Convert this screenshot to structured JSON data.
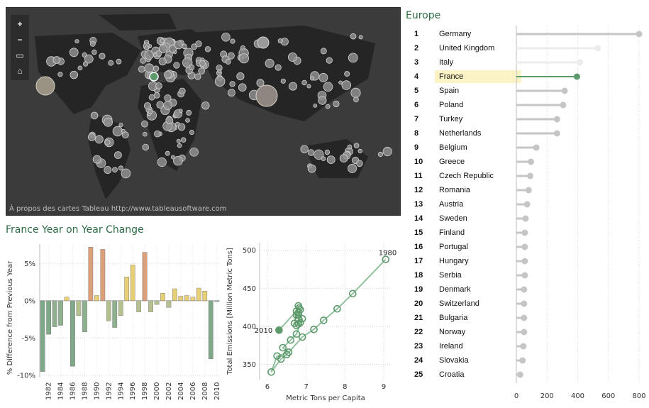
{
  "colors": {
    "map_bg": "#3b3b3b",
    "bubble_fill": "#8e8e8e",
    "bubble_stroke": "#cfcfcf",
    "highlight_green": "#5d9a6b",
    "title_green": "#2f6b46",
    "bar_grey": "#c5c5c5",
    "row_highlight": "#fbf3c5",
    "bar_green": "#7fa888",
    "bar_olive": "#b5c08f",
    "bar_yellow": "#e7cf78",
    "bar_orange": "#dba07a"
  },
  "map": {
    "footer": "À propos des cartes Tableau http://www.tableausoftware.com",
    "tools": [
      {
        "name": "zoom-in-icon",
        "glyph": "+"
      },
      {
        "name": "zoom-out-icon",
        "glyph": "−"
      },
      {
        "name": "select-region-icon",
        "glyph": "▭"
      },
      {
        "name": "home-icon",
        "glyph": "⌂"
      }
    ]
  },
  "europe": {
    "title": "Europe",
    "highlight_country": "France",
    "axis_ticks": [
      0,
      200,
      400,
      600,
      800
    ]
  },
  "yoy": {
    "title": "France Year on Year Change"
  },
  "chart_data": [
    {
      "type": "bar",
      "orientation": "horizontal",
      "title": "Europe",
      "categories": [
        "Germany",
        "United Kingdom",
        "Italy",
        "France",
        "Spain",
        "Poland",
        "Turkey",
        "Netherlands",
        "Belgium",
        "Greece",
        "Czech Republic",
        "Romania",
        "Austria",
        "Sweden",
        "Finland",
        "Portugal",
        "Hungary",
        "Serbia",
        "Denmark",
        "Switzerland",
        "Bulgaria",
        "Norway",
        "Ireland",
        "Slovakia",
        "Croatia"
      ],
      "ranks": [
        1,
        2,
        3,
        4,
        5,
        6,
        7,
        8,
        9,
        10,
        11,
        12,
        13,
        14,
        15,
        16,
        17,
        18,
        19,
        20,
        21,
        22,
        23,
        24,
        25
      ],
      "values": [
        800,
        530,
        415,
        395,
        315,
        305,
        265,
        265,
        130,
        95,
        90,
        80,
        70,
        60,
        55,
        55,
        55,
        55,
        50,
        50,
        50,
        50,
        45,
        40,
        25
      ],
      "xlim": [
        0,
        800
      ],
      "xticks": [
        0,
        200,
        400,
        600,
        800
      ],
      "grid": true,
      "highlight": "France"
    },
    {
      "type": "bar",
      "title": "France Year on Year Change",
      "ylabel": "% Difference from Previous Year",
      "xlabel": "",
      "categories": [
        "1981",
        "1982",
        "1983",
        "1984",
        "1985",
        "1986",
        "1987",
        "1988",
        "1989",
        "1990",
        "1991",
        "1992",
        "1993",
        "1994",
        "1995",
        "1996",
        "1997",
        "1998",
        "1999",
        "2000",
        "2001",
        "2002",
        "2003",
        "2004",
        "2005",
        "2006",
        "2007",
        "2008",
        "2009",
        "2010"
      ],
      "x_tick_labels": [
        "1982",
        "1984",
        "1986",
        "1988",
        "1990",
        "1992",
        "1994",
        "1996",
        "1998",
        "2000",
        "2002",
        "2004",
        "2006",
        "2008",
        "2010"
      ],
      "values": [
        -9.5,
        -4.5,
        -3.5,
        -3.3,
        0.5,
        -8.8,
        -2.0,
        -4.2,
        7.2,
        0.7,
        6.9,
        -2.7,
        -3.6,
        -2.0,
        3.2,
        4.8,
        -1.5,
        6.5,
        -1.5,
        -0.5,
        1.0,
        -0.9,
        1.6,
        0.6,
        0.7,
        0.5,
        1.7,
        1.3,
        -7.8,
        -0.1
      ],
      "colors": [
        "#7fa888",
        "#7fa888",
        "#8fb08e",
        "#8fb08e",
        "#e7cf78",
        "#7fa888",
        "#b5c08f",
        "#8fb08e",
        "#dba07a",
        "#e7cf78",
        "#dba07a",
        "#b5c08f",
        "#8fb08e",
        "#b5c08f",
        "#e7cf78",
        "#e7cf78",
        "#b5c08f",
        "#dba07a",
        "#b5c08f",
        "#b5c08f",
        "#e7cf78",
        "#b5c08f",
        "#e7cf78",
        "#e7cf78",
        "#e7cf78",
        "#e7cf78",
        "#e7cf78",
        "#e7cf78",
        "#7fa888",
        "#7fa888"
      ],
      "yticks": [
        "5%",
        "0%",
        "-5%",
        "-10%"
      ],
      "ytick_values": [
        5,
        0,
        -5,
        -10
      ],
      "ylim": [
        -10.3,
        7.6
      ],
      "grid": true
    },
    {
      "type": "scatter",
      "xlabel": "Metric Tons per Capita",
      "ylabel": "Total Emissions [Million Metric Tons]",
      "xlim": [
        5.8,
        9.2
      ],
      "ylim": [
        330,
        510
      ],
      "xticks": [
        6,
        7,
        8,
        9
      ],
      "yticks": [
        350,
        400,
        450,
        500
      ],
      "grid": true,
      "connected": true,
      "annotations": [
        {
          "x": 9.05,
          "y": 488,
          "text": "1980"
        },
        {
          "x": 6.28,
          "y": 395,
          "text": "2010"
        }
      ],
      "points": [
        {
          "x": 9.05,
          "y": 488
        },
        {
          "x": 8.2,
          "y": 443
        },
        {
          "x": 7.8,
          "y": 423
        },
        {
          "x": 7.45,
          "y": 408
        },
        {
          "x": 7.2,
          "y": 396
        },
        {
          "x": 6.9,
          "y": 386
        },
        {
          "x": 6.5,
          "y": 363
        },
        {
          "x": 6.35,
          "y": 357
        },
        {
          "x": 6.1,
          "y": 340
        },
        {
          "x": 6.25,
          "y": 361
        },
        {
          "x": 6.55,
          "y": 366
        },
        {
          "x": 6.4,
          "y": 372
        },
        {
          "x": 6.6,
          "y": 382
        },
        {
          "x": 6.75,
          "y": 390
        },
        {
          "x": 6.9,
          "y": 410
        },
        {
          "x": 6.8,
          "y": 415
        },
        {
          "x": 6.75,
          "y": 420
        },
        {
          "x": 6.8,
          "y": 427
        },
        {
          "x": 6.7,
          "y": 404
        },
        {
          "x": 6.75,
          "y": 401
        },
        {
          "x": 6.8,
          "y": 403
        },
        {
          "x": 6.85,
          "y": 405
        },
        {
          "x": 6.8,
          "y": 410
        },
        {
          "x": 6.75,
          "y": 415
        },
        {
          "x": 6.8,
          "y": 418
        },
        {
          "x": 6.85,
          "y": 422
        },
        {
          "x": 6.82,
          "y": 424
        },
        {
          "x": 6.3,
          "y": 395
        }
      ]
    }
  ]
}
